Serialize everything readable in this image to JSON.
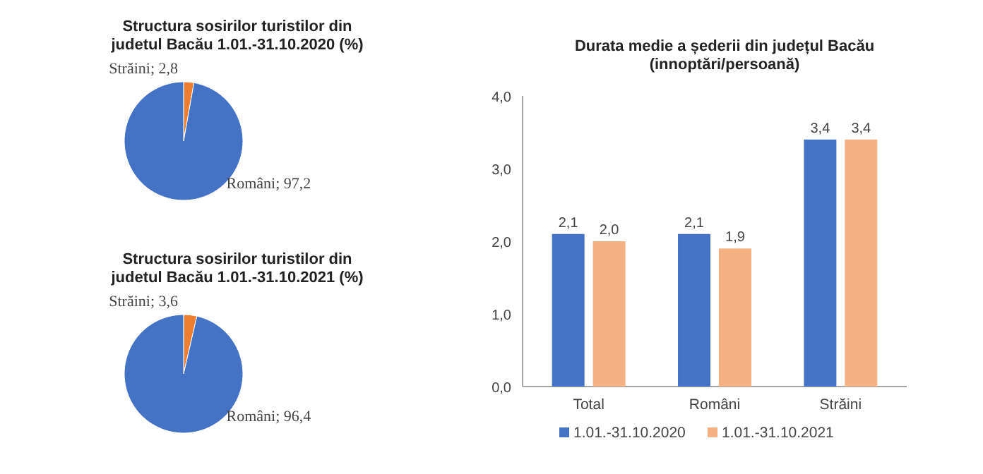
{
  "chart_data": [
    {
      "type": "pie",
      "title": "Structura sosirilor turistilor din\njudetul Bacău  1.01.-31.10.2020 (%)",
      "categories": [
        "Străini",
        "Români"
      ],
      "values": [
        2.8,
        97.2
      ],
      "value_labels": [
        "2,8",
        "97,2"
      ],
      "colors": [
        "#ed7d31",
        "#4472c4"
      ]
    },
    {
      "type": "pie",
      "title": "Structura sosirilor turistilor din\njudetul Bacău 1.01.-31.10.2021 (%)",
      "categories": [
        "Străini",
        "Români"
      ],
      "values": [
        3.6,
        96.4
      ],
      "value_labels": [
        "3,6",
        "96,4"
      ],
      "colors": [
        "#ed7d31",
        "#4472c4"
      ]
    },
    {
      "type": "bar",
      "title": "Durata medie a șederii din județul Bacău\n(innoptări/persoană)",
      "categories": [
        "Total",
        "Români",
        "Străini"
      ],
      "ylim": [
        0,
        4
      ],
      "yticks": [
        {
          "value": 0,
          "label": "0,0"
        },
        {
          "value": 1,
          "label": "1,0"
        },
        {
          "value": 2,
          "label": "2,0"
        },
        {
          "value": 3,
          "label": "3,0"
        },
        {
          "value": 4,
          "label": "4,0"
        }
      ],
      "grid": false,
      "legend": "bottom",
      "series": [
        {
          "name": "1.01.-31.10.2020",
          "color": "#4472c4",
          "values": [
            2.1,
            2.1,
            3.4
          ],
          "value_labels": [
            "2,1",
            "2,1",
            "3,4"
          ]
        },
        {
          "name": "1.01.-31.10.2021",
          "color": "#f4b183",
          "values": [
            2.0,
            1.9,
            3.4
          ],
          "value_labels": [
            "2,0",
            "1,9",
            "3,4"
          ]
        }
      ]
    }
  ]
}
